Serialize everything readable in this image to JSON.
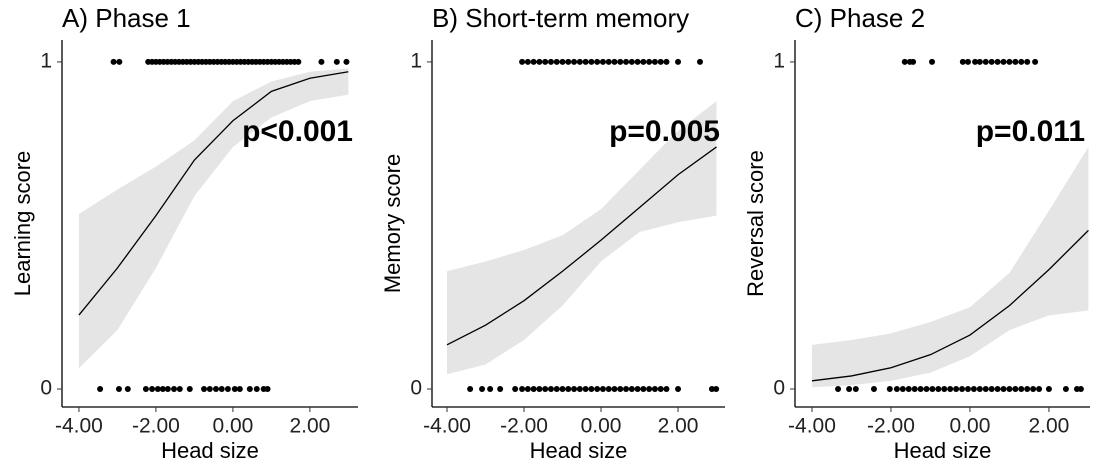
{
  "chart_data": [
    {
      "type": "line",
      "title": "A) Phase 1",
      "xlabel": "Head size",
      "ylabel": "Learning score",
      "annotation": "p<0.001",
      "line_color": "#000000",
      "band_color": "#e5e5e5",
      "point_color": "#000000",
      "x": [
        -4,
        -3,
        -2,
        -1,
        0,
        1,
        2,
        3
      ],
      "values": [
        0.226,
        0.37,
        0.53,
        0.7,
        0.82,
        0.91,
        0.95,
        0.97
      ],
      "ci_lower": [
        0.064,
        0.18,
        0.37,
        0.59,
        0.74,
        0.83,
        0.88,
        0.9
      ],
      "ci_upper": [
        0.535,
        0.61,
        0.68,
        0.76,
        0.88,
        0.94,
        0.97,
        0.98
      ],
      "points": {
        "x": [
          -3.1,
          -2.95,
          -2.2,
          -2.1,
          -2.0,
          -1.9,
          -1.8,
          -1.7,
          -1.6,
          -1.5,
          -1.4,
          -1.3,
          -1.2,
          -1.1,
          -1.0,
          -0.9,
          -0.8,
          -0.7,
          -0.6,
          -0.5,
          -0.4,
          -0.3,
          -0.2,
          -0.1,
          0,
          0.1,
          0.2,
          0.3,
          0.4,
          0.5,
          0.6,
          0.7,
          0.8,
          0.9,
          1.0,
          1.1,
          1.2,
          1.3,
          1.4,
          1.5,
          1.6,
          1.7,
          2.3,
          2.7,
          2.95,
          -3.45,
          -2.96,
          -2.73,
          -2.26,
          -2.1,
          -1.95,
          -1.82,
          -1.69,
          -1.53,
          -1.38,
          -1.12,
          -0.75,
          -0.6,
          -0.44,
          -0.29,
          -0.13,
          0.05,
          0.18,
          0.44,
          0.62,
          0.8,
          0.9
        ],
        "y": [
          1,
          1,
          1,
          1,
          1,
          1,
          1,
          1,
          1,
          1,
          1,
          1,
          1,
          1,
          1,
          1,
          1,
          1,
          1,
          1,
          1,
          1,
          1,
          1,
          1,
          1,
          1,
          1,
          1,
          1,
          1,
          1,
          1,
          1,
          1,
          1,
          1,
          1,
          1,
          1,
          1,
          1,
          1,
          1,
          1,
          0,
          0,
          0,
          0,
          0,
          0,
          0,
          0,
          0,
          0,
          0,
          0,
          0,
          0,
          0,
          0,
          0,
          0,
          0,
          0,
          0,
          0
        ]
      },
      "xlim": [
        -4.44,
        3.25
      ],
      "ylim": [
        -0.055,
        1.067
      ],
      "xticks": [
        {
          "value": -4,
          "label": "-4.00"
        },
        {
          "value": -2,
          "label": "-2.00"
        },
        {
          "value": 0,
          "label": "0.00"
        },
        {
          "value": 2,
          "label": "2.00"
        }
      ],
      "yticks": [
        0,
        1
      ]
    },
    {
      "type": "line",
      "title": "B) Short-term memory",
      "xlabel": "Head size",
      "ylabel": "Memory score",
      "annotation": "p=0.005",
      "line_color": "#000000",
      "band_color": "#e5e5e5",
      "point_color": "#000000",
      "x": [
        -4,
        -3,
        -2,
        -1,
        0,
        1,
        2,
        3
      ],
      "values": [
        0.135,
        0.195,
        0.27,
        0.36,
        0.455,
        0.555,
        0.655,
        0.74
      ],
      "ci_lower": [
        0.045,
        0.075,
        0.15,
        0.255,
        0.39,
        0.48,
        0.51,
        0.53
      ],
      "ci_upper": [
        0.36,
        0.39,
        0.425,
        0.47,
        0.55,
        0.67,
        0.79,
        0.88
      ],
      "points": {
        "x": [
          -2.05,
          -1.9,
          -1.75,
          -1.6,
          -1.45,
          -1.3,
          -1.15,
          -1.0,
          -0.85,
          -0.7,
          -0.55,
          -0.4,
          -0.25,
          -0.1,
          0.05,
          0.2,
          0.35,
          0.5,
          0.65,
          0.8,
          0.95,
          1.1,
          1.25,
          1.4,
          1.55,
          1.7,
          2.0,
          2.57,
          -3.4,
          -3.09,
          -2.88,
          -2.62,
          -2.23,
          -2.05,
          -1.9,
          -1.75,
          -1.6,
          -1.45,
          -1.3,
          -1.15,
          -1.0,
          -0.85,
          -0.7,
          -0.55,
          -0.4,
          -0.25,
          -0.1,
          0.05,
          0.2,
          0.35,
          0.5,
          0.65,
          0.8,
          0.95,
          1.1,
          1.25,
          1.4,
          1.55,
          1.7,
          2.0,
          2.88,
          2.99
        ],
        "y": [
          1,
          1,
          1,
          1,
          1,
          1,
          1,
          1,
          1,
          1,
          1,
          1,
          1,
          1,
          1,
          1,
          1,
          1,
          1,
          1,
          1,
          1,
          1,
          1,
          1,
          1,
          1,
          1,
          0,
          0,
          0,
          0,
          0,
          0,
          0,
          0,
          0,
          0,
          0,
          0,
          0,
          0,
          0,
          0,
          0,
          0,
          0,
          0,
          0,
          0,
          0,
          0,
          0,
          0,
          0,
          0,
          0,
          0,
          0,
          0,
          0,
          0
        ]
      },
      "xlim": [
        -4.39,
        3.22
      ],
      "ylim": [
        -0.055,
        1.067
      ],
      "xticks": [
        {
          "value": -4,
          "label": "-4.00"
        },
        {
          "value": -2,
          "label": "-2.00"
        },
        {
          "value": 0,
          "label": "0.00"
        },
        {
          "value": 2,
          "label": "2.00"
        }
      ],
      "yticks": [
        0,
        1
      ]
    },
    {
      "type": "line",
      "title": "C) Phase 2",
      "xlabel": "Head size",
      "ylabel": "Reversal score",
      "annotation": "p=0.011",
      "line_color": "#000000",
      "band_color": "#e5e5e5",
      "point_color": "#000000",
      "x": [
        -4,
        -3,
        -2,
        -1,
        0,
        1,
        2,
        3
      ],
      "values": [
        0.025,
        0.04,
        0.065,
        0.105,
        0.165,
        0.255,
        0.365,
        0.485
      ],
      "ci_lower": [
        0.005,
        0.012,
        0.025,
        0.05,
        0.1,
        0.18,
        0.225,
        0.24
      ],
      "ci_upper": [
        0.135,
        0.15,
        0.17,
        0.205,
        0.25,
        0.355,
        0.545,
        0.74
      ],
      "points": {
        "x": [
          -1.65,
          -1.52,
          -1.44,
          -0.96,
          -0.18,
          -0.05,
          0.13,
          0.25,
          0.4,
          0.55,
          0.7,
          0.85,
          1.0,
          1.15,
          1.3,
          1.45,
          1.65,
          -3.34,
          -3.06,
          -2.89,
          -2.43,
          -2.03,
          -1.85,
          -1.7,
          -1.55,
          -1.4,
          -1.25,
          -1.1,
          -0.95,
          -0.8,
          -0.65,
          -0.5,
          -0.35,
          -0.2,
          -0.05,
          0.1,
          0.25,
          0.4,
          0.55,
          0.7,
          0.85,
          1.0,
          1.15,
          1.3,
          1.45,
          1.6,
          1.75,
          2.0,
          2.43,
          2.71,
          2.81
        ],
        "y": [
          1,
          1,
          1,
          1,
          1,
          1,
          1,
          1,
          1,
          1,
          1,
          1,
          1,
          1,
          1,
          1,
          1,
          0,
          0,
          0,
          0,
          0,
          0,
          0,
          0,
          0,
          0,
          0,
          0,
          0,
          0,
          0,
          0,
          0,
          0,
          0,
          0,
          0,
          0,
          0,
          0,
          0,
          0,
          0,
          0,
          0,
          0,
          0,
          0,
          0,
          0
        ]
      },
      "xlim": [
        -4.43,
        3.04
      ],
      "ylim": [
        -0.055,
        1.067
      ],
      "xticks": [
        {
          "value": -4,
          "label": "-4.00"
        },
        {
          "value": -2,
          "label": "-2.00"
        },
        {
          "value": 0,
          "label": "0.00"
        },
        {
          "value": 2,
          "label": "2.00"
        }
      ],
      "yticks": [
        0,
        1
      ]
    }
  ]
}
